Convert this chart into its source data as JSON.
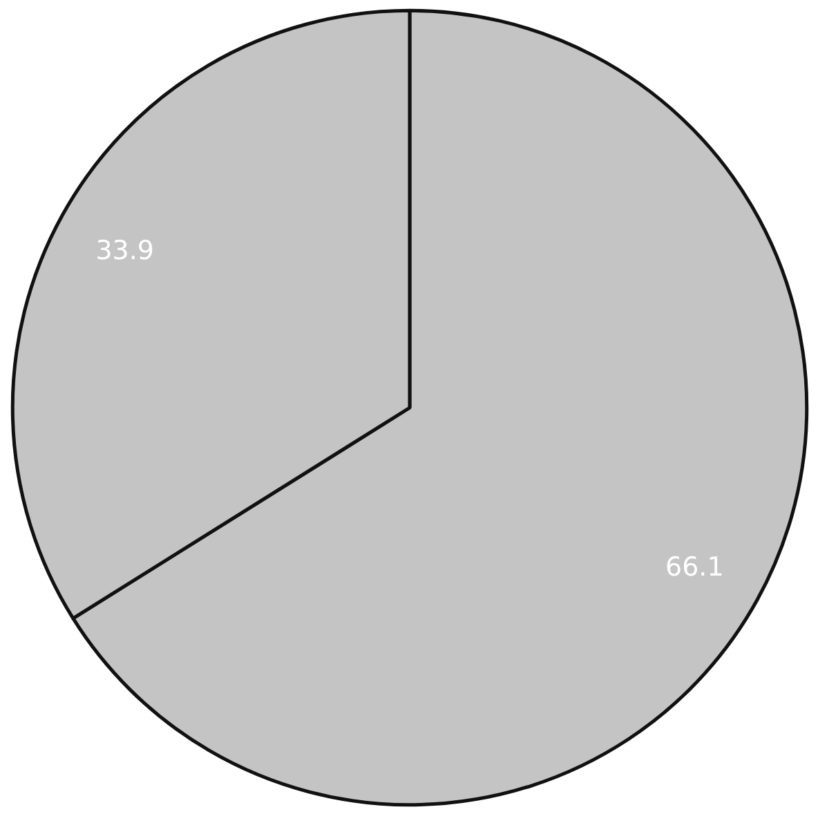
{
  "chart_data": {
    "type": "pie",
    "categories": [
      null,
      null
    ],
    "values": [
      66.1,
      33.9
    ],
    "colors": [
      "#c4c4c4",
      "#c4c4c4"
    ],
    "data_labels": true
  }
}
